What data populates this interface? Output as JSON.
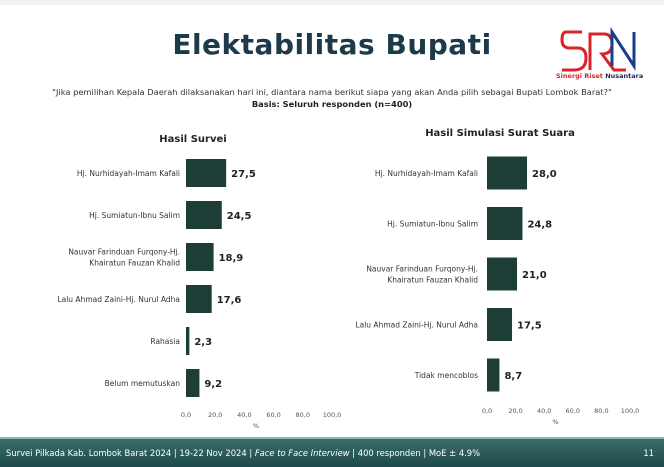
{
  "header": {
    "title": "Elektabilitas Bupati",
    "logo": {
      "text_red": "Sinergi Riset",
      "text_blue": "Nusantara",
      "colors": {
        "red": "#d8232a",
        "blue": "#1a3e8c"
      }
    },
    "question": "\"Jika pemilihan Kepala Daerah dilaksanakan hari ini, diantara nama berikut siapa yang akan Anda pilih sebagai Bupati Lombok Barat?\"",
    "basis": "Basis: Seluruh responden (n=400)"
  },
  "chart_data": [
    {
      "type": "bar",
      "orientation": "horizontal",
      "title": "Hasil Survei",
      "xlabel": "%",
      "xlim": [
        0,
        100
      ],
      "xticks": [
        "0,0",
        "20,0",
        "40,0",
        "60,0",
        "80,0",
        "100,0"
      ],
      "categories": [
        [
          "Hj. Nurhidayah-Imam Kafali"
        ],
        [
          "Hj. Sumiatun-Ibnu Salim"
        ],
        [
          "Nauvar Farinduan Furqony-Hj.",
          "Khairatun Fauzan Khalid"
        ],
        [
          "Lalu Ahmad Zaini-Hj. Nurul Adha"
        ],
        [
          "Rahasia"
        ],
        [
          "Belum memutuskan"
        ]
      ],
      "values": [
        27.5,
        24.5,
        18.9,
        17.6,
        2.3,
        9.2
      ],
      "labels": [
        "27,5",
        "24,5",
        "18,9",
        "17,6",
        "2,3",
        "9,2"
      ],
      "color": "#1e3d36",
      "grid": false
    },
    {
      "type": "bar",
      "orientation": "horizontal",
      "title": "Hasil Simulasi Surat Suara",
      "xlabel": "%",
      "xlim": [
        0,
        100
      ],
      "xticks": [
        "0,0",
        "20,0",
        "40,0",
        "60,0",
        "80,0",
        "100,0"
      ],
      "categories": [
        [
          "Hj. Nurhidayah-Imam Kafali"
        ],
        [
          "Hj. Sumiatun-Ibnu Salim"
        ],
        [
          "Nauvar Farinduan Furqony-Hj.",
          "Khairatun Fauzan Khalid"
        ],
        [
          "Lalu Ahmad Zaini-Hj. Nurul Adha"
        ],
        [
          "Tidak mencoblos"
        ]
      ],
      "values": [
        28.0,
        24.8,
        21.0,
        17.5,
        8.7
      ],
      "labels": [
        "28,0",
        "24,8",
        "21,0",
        "17,5",
        "8,7"
      ],
      "color": "#1e3d36",
      "grid": false
    }
  ],
  "footer": {
    "text_a": "Survei Pilkada Kab. Lombok Barat 2024 | 19-22 Nov 2024 | ",
    "text_italic": "Face to Face Interview",
    "text_b": " | 400 responden | MoE  ± 4.9%",
    "page": "11"
  }
}
